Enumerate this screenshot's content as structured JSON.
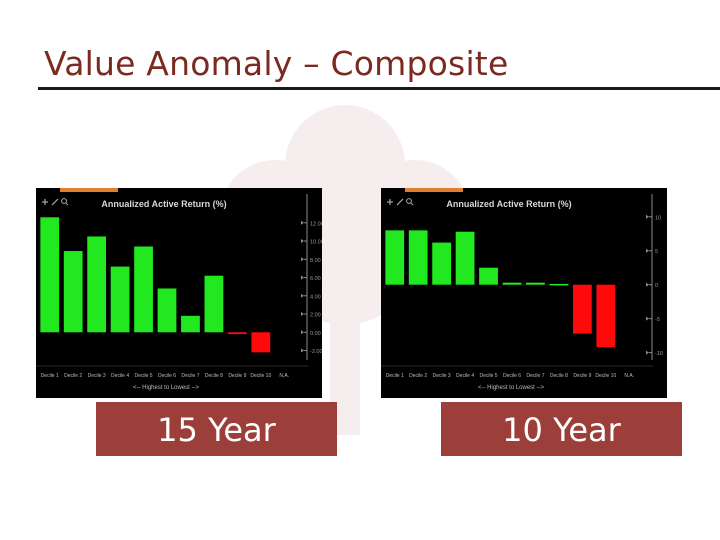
{
  "slide": {
    "title": "Value Anomaly – Composite",
    "captions": [
      "15 Year",
      "10 Year"
    ]
  },
  "colors": {
    "title": "#7b2a1f",
    "caption_bg": "#9c3f3b",
    "positive_bar": "#22e81f",
    "negative_bar": "#ff0a0a",
    "toolbar_accent": "#e07f2e",
    "chart_bg": "#000000"
  },
  "icons": [
    "zoom-in-icon",
    "pencil-icon",
    "search-icon"
  ],
  "chart_data": [
    {
      "type": "bar",
      "title": "Annualized Active Return (%)",
      "xlabel": "<-- Highest to Lowest -->",
      "categories": [
        "Decile 1",
        "Decile 2",
        "Decile 3",
        "Decile 4",
        "Decile 5",
        "Decile 6",
        "Decile 7",
        "Decile 8",
        "Decile 9",
        "Decile 10",
        "N.A."
      ],
      "values": [
        12.6,
        8.9,
        10.5,
        7.2,
        9.4,
        4.8,
        1.8,
        6.2,
        -0.2,
        -2.2,
        null
      ],
      "ylim": [
        -2.6,
        13.4
      ],
      "yticks": [
        -2,
        0,
        2,
        4,
        6,
        8,
        10,
        12
      ],
      "ytick_labels": [
        "-2.00",
        "0.00",
        "2.00",
        "4.00",
        "6.00",
        "8.00",
        "10.00",
        "12.00"
      ]
    },
    {
      "type": "bar",
      "title": "Annualized Active Return (%)",
      "xlabel": "<-- Highest to Lowest -->",
      "categories": [
        "Decile 1",
        "Decile 2",
        "Decile 3",
        "Decile 4",
        "Decile 5",
        "Decile 6",
        "Decile 7",
        "Decile 8",
        "Decile 9",
        "Decile 10",
        "N.A."
      ],
      "values": [
        8.0,
        8.0,
        6.2,
        7.8,
        2.5,
        0.3,
        0.3,
        0.0,
        -7.2,
        -9.2,
        null
      ],
      "ylim": [
        -10.5,
        11.0
      ],
      "yticks": [
        -10,
        -5,
        0,
        5,
        10
      ],
      "ytick_labels": [
        "-10",
        "-5",
        "0",
        "5",
        "10"
      ]
    }
  ]
}
